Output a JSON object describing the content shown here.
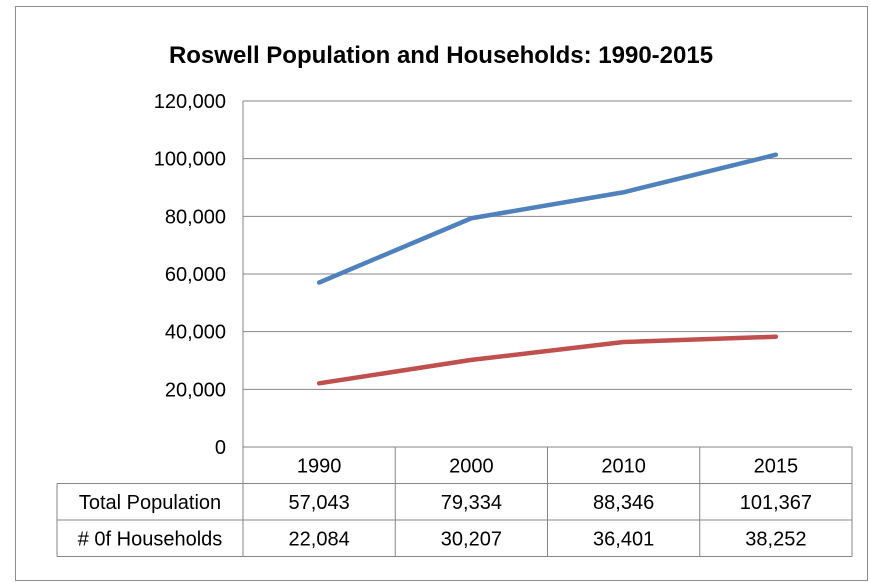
{
  "chart_data": {
    "type": "line",
    "title": "Roswell Population and Households: 1990-2015",
    "categories": [
      "1990",
      "2000",
      "2010",
      "2015"
    ],
    "ylim": [
      0,
      120000
    ],
    "yticks": [
      "0",
      "20,000",
      "40,000",
      "60,000",
      "80,000",
      "100,000",
      "120,000"
    ],
    "grid": true,
    "legend": "data table below chart",
    "series": [
      {
        "name": "Total Population",
        "values": [
          57043,
          79334,
          88346,
          101367
        ],
        "labels": [
          "57,043",
          "79,334",
          "88,346",
          "101,367"
        ],
        "color": "#4f81bd"
      },
      {
        "name": "# 0f Households",
        "values": [
          22084,
          30207,
          36401,
          38252
        ],
        "labels": [
          "22,084",
          "30,207",
          "36,401",
          "38,252"
        ],
        "color": "#c0504d"
      }
    ]
  }
}
